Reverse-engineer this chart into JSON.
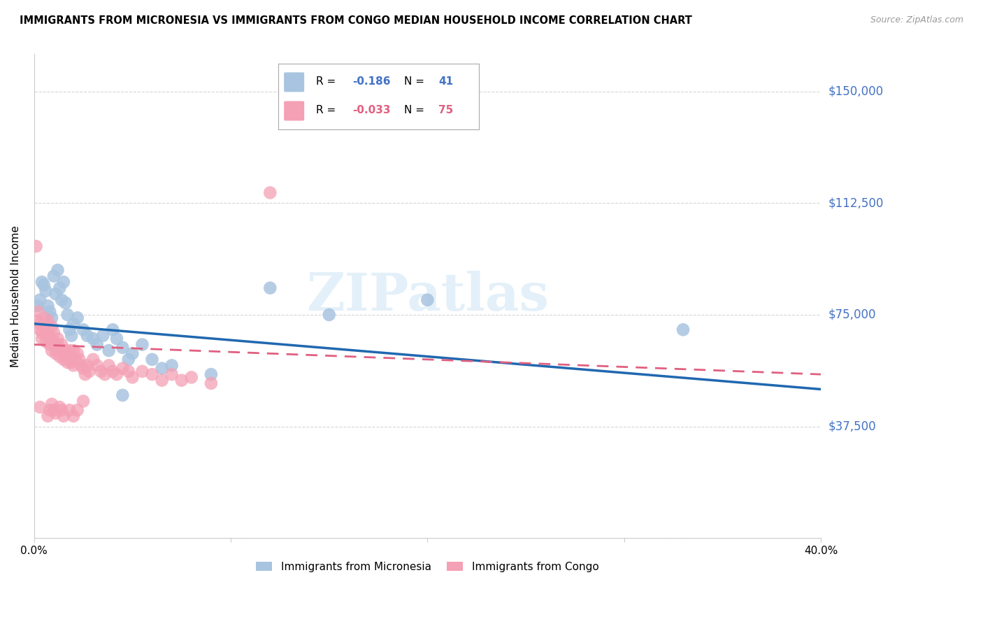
{
  "title": "IMMIGRANTS FROM MICRONESIA VS IMMIGRANTS FROM CONGO MEDIAN HOUSEHOLD INCOME CORRELATION CHART",
  "source": "Source: ZipAtlas.com",
  "ylabel": "Median Household Income",
  "xlim": [
    0.0,
    0.4
  ],
  "ylim": [
    0,
    162500
  ],
  "yticks": [
    0,
    37500,
    75000,
    112500,
    150000
  ],
  "ytick_labels": [
    "",
    "$37,500",
    "$75,000",
    "$112,500",
    "$150,000"
  ],
  "xticks": [
    0.0,
    0.1,
    0.2,
    0.3,
    0.4
  ],
  "xtick_labels": [
    "0.0%",
    "",
    "",
    "",
    "40.0%"
  ],
  "micronesia_color": "#a8c4e0",
  "congo_color": "#f4a0b5",
  "trendline_micronesia_color": "#2068b0",
  "trendline_congo_color": "#e06080",
  "watermark": "ZIPatlas",
  "micronesia_R": "-0.186",
  "micronesia_N": "41",
  "congo_R": "-0.033",
  "congo_N": "75",
  "micronesia_trendline": [
    [
      0.0,
      72000
    ],
    [
      0.4,
      50000
    ]
  ],
  "congo_trendline": [
    [
      0.0,
      65000
    ],
    [
      0.4,
      55000
    ]
  ],
  "micronesia_points": [
    [
      0.002,
      78000
    ],
    [
      0.003,
      80000
    ],
    [
      0.004,
      86000
    ],
    [
      0.005,
      85000
    ],
    [
      0.006,
      83000
    ],
    [
      0.007,
      78000
    ],
    [
      0.008,
      76000
    ],
    [
      0.009,
      74000
    ],
    [
      0.01,
      88000
    ],
    [
      0.011,
      82000
    ],
    [
      0.012,
      90000
    ],
    [
      0.013,
      84000
    ],
    [
      0.014,
      80000
    ],
    [
      0.015,
      86000
    ],
    [
      0.016,
      79000
    ],
    [
      0.017,
      75000
    ],
    [
      0.018,
      70000
    ],
    [
      0.019,
      68000
    ],
    [
      0.02,
      72000
    ],
    [
      0.022,
      74000
    ],
    [
      0.025,
      70000
    ],
    [
      0.027,
      68000
    ],
    [
      0.03,
      67000
    ],
    [
      0.032,
      65000
    ],
    [
      0.035,
      68000
    ],
    [
      0.038,
      63000
    ],
    [
      0.04,
      70000
    ],
    [
      0.042,
      67000
    ],
    [
      0.045,
      64000
    ],
    [
      0.048,
      60000
    ],
    [
      0.05,
      62000
    ],
    [
      0.055,
      65000
    ],
    [
      0.06,
      60000
    ],
    [
      0.065,
      57000
    ],
    [
      0.07,
      58000
    ],
    [
      0.09,
      55000
    ],
    [
      0.12,
      84000
    ],
    [
      0.15,
      75000
    ],
    [
      0.2,
      80000
    ],
    [
      0.33,
      70000
    ],
    [
      0.045,
      48000
    ]
  ],
  "congo_points": [
    [
      0.001,
      98000
    ],
    [
      0.002,
      76000
    ],
    [
      0.002,
      73000
    ],
    [
      0.003,
      72000
    ],
    [
      0.003,
      70000
    ],
    [
      0.004,
      69000
    ],
    [
      0.004,
      67000
    ],
    [
      0.005,
      74000
    ],
    [
      0.005,
      71000
    ],
    [
      0.006,
      69000
    ],
    [
      0.006,
      66000
    ],
    [
      0.007,
      73000
    ],
    [
      0.007,
      69000
    ],
    [
      0.008,
      67000
    ],
    [
      0.008,
      65000
    ],
    [
      0.009,
      63000
    ],
    [
      0.009,
      71000
    ],
    [
      0.01,
      69000
    ],
    [
      0.01,
      66000
    ],
    [
      0.011,
      64000
    ],
    [
      0.011,
      62000
    ],
    [
      0.012,
      67000
    ],
    [
      0.012,
      65000
    ],
    [
      0.013,
      63000
    ],
    [
      0.013,
      61000
    ],
    [
      0.014,
      65000
    ],
    [
      0.015,
      62000
    ],
    [
      0.015,
      60000
    ],
    [
      0.016,
      63000
    ],
    [
      0.017,
      61000
    ],
    [
      0.017,
      59000
    ],
    [
      0.018,
      63000
    ],
    [
      0.018,
      61000
    ],
    [
      0.019,
      59000
    ],
    [
      0.02,
      63000
    ],
    [
      0.02,
      58000
    ],
    [
      0.021,
      60000
    ],
    [
      0.022,
      62000
    ],
    [
      0.023,
      60000
    ],
    [
      0.024,
      58000
    ],
    [
      0.025,
      57000
    ],
    [
      0.026,
      55000
    ],
    [
      0.027,
      58000
    ],
    [
      0.028,
      56000
    ],
    [
      0.03,
      60000
    ],
    [
      0.032,
      58000
    ],
    [
      0.034,
      56000
    ],
    [
      0.036,
      55000
    ],
    [
      0.038,
      58000
    ],
    [
      0.04,
      56000
    ],
    [
      0.042,
      55000
    ],
    [
      0.045,
      57000
    ],
    [
      0.048,
      56000
    ],
    [
      0.05,
      54000
    ],
    [
      0.055,
      56000
    ],
    [
      0.06,
      55000
    ],
    [
      0.065,
      53000
    ],
    [
      0.07,
      55000
    ],
    [
      0.075,
      53000
    ],
    [
      0.08,
      54000
    ],
    [
      0.09,
      52000
    ],
    [
      0.003,
      44000
    ],
    [
      0.007,
      41000
    ],
    [
      0.008,
      43000
    ],
    [
      0.009,
      45000
    ],
    [
      0.01,
      43000
    ],
    [
      0.011,
      42000
    ],
    [
      0.013,
      44000
    ],
    [
      0.014,
      43000
    ],
    [
      0.015,
      41000
    ],
    [
      0.018,
      43000
    ],
    [
      0.02,
      41000
    ],
    [
      0.022,
      43000
    ],
    [
      0.025,
      46000
    ],
    [
      0.12,
      116000
    ]
  ]
}
